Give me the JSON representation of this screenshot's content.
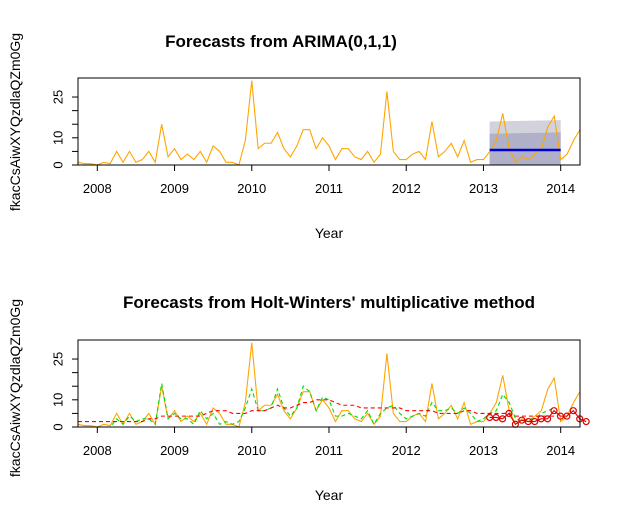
{
  "chart_data": [
    {
      "type": "line",
      "title": "Forecasts from ARIMA(0,1,1)",
      "xlabel": "Year",
      "ylabel": "fkacCsAiwXYQzdlaQZm0Gg",
      "xlim": [
        2007.75,
        2014.25
      ],
      "ylim": [
        0,
        32
      ],
      "xticks": [
        2008,
        2009,
        2010,
        2011,
        2012,
        2013,
        2014
      ],
      "yticks": [
        0,
        10,
        25
      ],
      "series": [
        {
          "role": "observed",
          "color": "#FFA500",
          "x_start": 2007.75,
          "x_step": 0.08333,
          "values": [
            1,
            0.5,
            0.5,
            0,
            1,
            0.5,
            5,
            1,
            5,
            1,
            2,
            5,
            1,
            15,
            3,
            6,
            2,
            4,
            2,
            5,
            1,
            7,
            5,
            1,
            1,
            0,
            9,
            31,
            6,
            8,
            8,
            12,
            6,
            3,
            7,
            13,
            13,
            6,
            10,
            7,
            2,
            6,
            6,
            3,
            2,
            5,
            1,
            4,
            27,
            5,
            2,
            2,
            4,
            5,
            2,
            16,
            3,
            5,
            8,
            3,
            9,
            1,
            2,
            2,
            5,
            9,
            19,
            6,
            1,
            3,
            2,
            4,
            6,
            14,
            18,
            2,
            4,
            9,
            13
          ]
        },
        {
          "role": "point-forecast",
          "color": "#0000CC",
          "x": [
            2013.08,
            2014.0
          ],
          "values": [
            5.5,
            5.5
          ]
        }
      ],
      "intervals": [
        {
          "level": "95%",
          "color": "#D2D2DC",
          "x": [
            2013.08,
            2014.0
          ],
          "lower": [
            0,
            0
          ],
          "upper": [
            16,
            16.5
          ]
        },
        {
          "level": "80%",
          "color": "#B0B0C8",
          "x": [
            2013.08,
            2014.0
          ],
          "lower": [
            0,
            0
          ],
          "upper": [
            11.5,
            12
          ]
        }
      ]
    },
    {
      "type": "line",
      "title": "Forecasts from Holt-Winters' multiplicative method",
      "xlabel": "Year",
      "ylabel": "fkacCsAiwXYQzdlaQZm0Gg",
      "xlim": [
        2007.75,
        2014.25
      ],
      "ylim": [
        0,
        32
      ],
      "xticks": [
        2008,
        2009,
        2010,
        2011,
        2012,
        2013,
        2014
      ],
      "yticks": [
        0,
        10,
        25
      ],
      "series": [
        {
          "role": "observed",
          "color": "#FFA500",
          "x_start": 2007.75,
          "x_step": 0.08333,
          "values": [
            1,
            0.5,
            0.5,
            0,
            1,
            0.5,
            5,
            1,
            5,
            1,
            2,
            5,
            1,
            15,
            3,
            6,
            2,
            4,
            2,
            5,
            1,
            7,
            5,
            1,
            1,
            0,
            9,
            31,
            6,
            8,
            8,
            12,
            6,
            3,
            7,
            13,
            13,
            6,
            10,
            7,
            2,
            6,
            6,
            3,
            2,
            5,
            1,
            4,
            27,
            5,
            2,
            2,
            4,
            5,
            2,
            16,
            3,
            5,
            8,
            3,
            9,
            1,
            2,
            2,
            5,
            9,
            19,
            6,
            1,
            3,
            2,
            4,
            6,
            14,
            18,
            2,
            4,
            9,
            13
          ]
        },
        {
          "role": "fitted",
          "color": "#00DD00",
          "dash": true,
          "x_start": 2007.75,
          "x_step": 0.08333,
          "values": [
            0,
            0,
            0,
            0,
            0,
            0,
            3,
            1,
            4,
            2,
            3,
            3,
            1,
            16,
            3,
            5,
            3,
            3,
            1,
            6,
            3,
            5,
            1,
            2,
            1,
            2,
            7,
            14,
            6,
            6,
            7,
            14,
            7,
            4,
            7,
            15,
            13,
            6,
            11,
            10,
            4,
            4,
            5,
            4,
            3,
            6,
            1,
            5,
            7,
            8,
            5,
            3,
            4,
            5,
            4,
            9,
            6,
            6,
            7,
            5,
            7,
            5,
            2,
            3,
            5,
            6,
            12,
            9,
            3,
            2,
            3,
            3,
            5,
            6,
            7
          ]
        },
        {
          "role": "level-fit",
          "color": "#FF0000",
          "dash": true,
          "x_start": 2007.75,
          "x_step": 0.08333,
          "values": [
            2,
            2,
            2,
            2,
            2,
            2,
            2,
            2,
            2,
            2,
            2,
            3,
            3,
            4,
            4,
            4,
            4,
            4,
            4,
            4,
            5,
            6,
            6,
            6,
            5,
            5,
            5,
            6,
            6,
            6,
            7,
            8,
            7,
            7,
            8,
            9,
            9,
            10,
            10,
            10,
            9,
            8,
            8,
            8,
            7,
            7,
            7,
            7,
            7,
            7,
            7,
            6,
            6,
            6,
            6,
            6,
            5,
            5,
            5,
            5,
            6,
            6,
            5,
            5,
            5,
            5,
            5,
            5,
            4,
            4,
            4,
            4,
            4,
            4,
            4
          ]
        },
        {
          "role": "forecast",
          "color": "#DD0000",
          "markers": "circle",
          "x_start": 2013.08,
          "x_step": 0.08333,
          "values": [
            3.5,
            3.5,
            3,
            5,
            1,
            2.5,
            2,
            2,
            3,
            3,
            6,
            4,
            4,
            6,
            3,
            2
          ]
        }
      ]
    }
  ]
}
